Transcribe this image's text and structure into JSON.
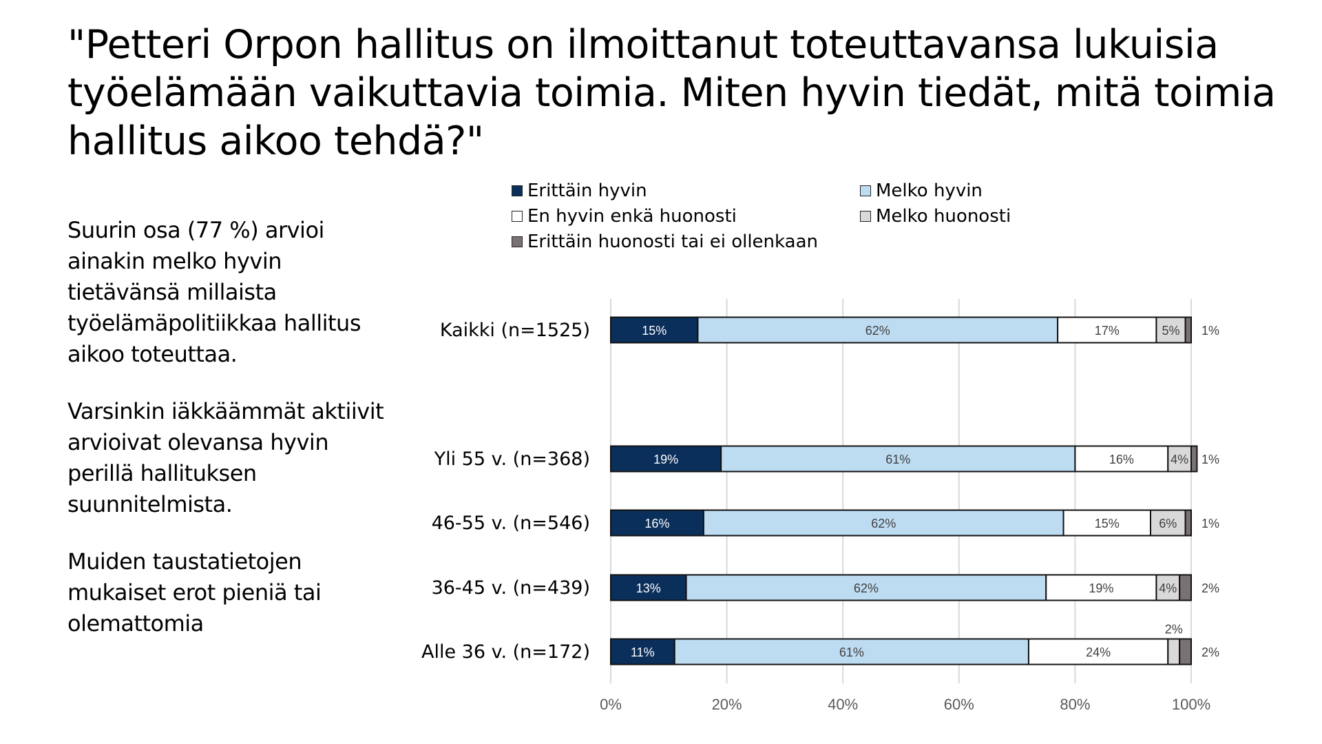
{
  "title": "\"Petteri Orpon hallitus on ilmoittanut toteuttavansa  lukuisia työelämään vaikuttavia toimia.  Miten hyvin tiedät, mitä toimia hallitus aikoo tehdä?\"",
  "body": [
    "Suurin osa (77 %) arvioi ainakin melko hyvin tietävänsä millaista työelämäpolitiikkaa hallitus aikoo toteuttaa.",
    "Varsinkin iäkkäämmät aktiivit arvioivat olevansa hyvin perillä hallituksen suunnitelmista.",
    "Muiden taustatietojen mukaiset erot pieniä tai olemattomia"
  ],
  "chart_data": {
    "type": "bar",
    "orientation": "horizontal",
    "stacked": true,
    "categories": [
      "Kaikki (n=1525)",
      "Yli 55 v. (n=368)",
      "46-55 v. (n=546)",
      "36-45 v. (n=439)",
      "Alle 36 v. (n=172)"
    ],
    "series": [
      {
        "name": "Erittäin hyvin",
        "color": "#0b2f5b",
        "values": [
          15,
          19,
          16,
          13,
          11
        ]
      },
      {
        "name": "Melko hyvin",
        "color": "#bddcf2",
        "values": [
          62,
          61,
          62,
          62,
          61
        ]
      },
      {
        "name": "En hyvin enkä huonosti",
        "color": "#ffffff",
        "values": [
          17,
          16,
          15,
          19,
          24
        ]
      },
      {
        "name": "Melko huonosti",
        "color": "#d9d9d9",
        "values": [
          5,
          4,
          6,
          4,
          2
        ]
      },
      {
        "name": "Erittäin huonosti tai ei ollenkaan",
        "color": "#7a7272",
        "values": [
          1,
          1,
          1,
          2,
          2
        ]
      }
    ],
    "xticks": [
      "0%",
      "20%",
      "40%",
      "60%",
      "80%",
      "100%"
    ],
    "xlim": [
      0,
      100
    ],
    "grid": true,
    "legend": "top"
  }
}
